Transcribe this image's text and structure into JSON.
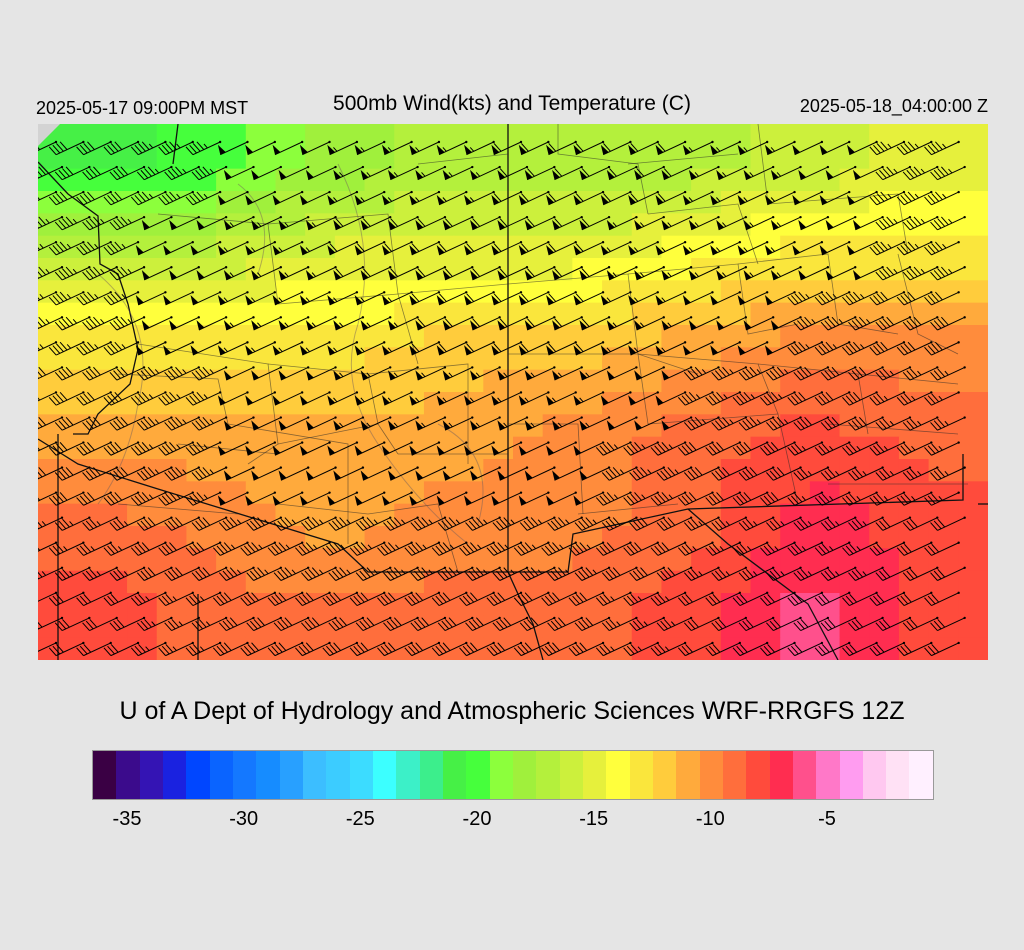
{
  "header": {
    "local_time": "2025-05-17 09:00PM MST",
    "title": "500mb Wind(kts) and Temperature (C)",
    "utc_time": "2025-05-18_04:00:00 Z"
  },
  "credit": "U of A Dept of Hydrology and Atmospheric Sciences WRF-RRGFS 12Z",
  "colorbar": {
    "colors": [
      "#3a0044",
      "#3b0b8c",
      "#3414b4",
      "#1a22e0",
      "#0046ff",
      "#0a64ff",
      "#1478ff",
      "#168cff",
      "#28a0ff",
      "#3cbeff",
      "#3cccff",
      "#3cdcff",
      "#3cffff",
      "#3cf0c8",
      "#3cee8c",
      "#46f046",
      "#46ff3c",
      "#8cff3c",
      "#a0f03c",
      "#b4f03c",
      "#ccf03c",
      "#e6f03c",
      "#ffff3c",
      "#fae63c",
      "#ffcc3c",
      "#ffaa3c",
      "#ff8c3c",
      "#ff6e3c",
      "#ff4b3c",
      "#ff2d50",
      "#ff508c",
      "#ff78c8",
      "#ff9cf0",
      "#ffc8f0",
      "#ffe1f5",
      "#fff0ff"
    ],
    "tick_labels": [
      "-35",
      "-30",
      "-25",
      "-20",
      "-15",
      "-10",
      "-5"
    ],
    "tick_index": [
      1,
      6,
      11,
      16,
      21,
      26,
      31
    ]
  },
  "map": {
    "ocean_color": "#d3d3d3",
    "temperature_field": {
      "description_source": "color shading",
      "rows": 6,
      "cols": 8,
      "values_c": [
        [
          -21,
          -20,
          -18,
          -17,
          -17,
          -17,
          -16,
          -15
        ],
        [
          -16,
          -16,
          -15,
          -15,
          -15,
          -14,
          -13,
          -13
        ],
        [
          -13,
          -13,
          -13,
          -12,
          -12,
          -11,
          -10,
          -10
        ],
        [
          -11,
          -11,
          -11,
          -11,
          -10,
          -9,
          -8,
          -9
        ],
        [
          -9,
          -10,
          -11,
          -10,
          -10,
          -9,
          -7,
          -8
        ],
        [
          -8,
          -9,
          -9,
          -9,
          -9,
          -8,
          -6,
          -8
        ]
      ]
    },
    "wind_barbs": {
      "icon": "wind-barb-icon",
      "direction_from_deg": 245,
      "speed_kts": [
        [
          40,
          45,
          50,
          55,
          55,
          60,
          60,
          55,
          50,
          45
        ],
        [
          45,
          50,
          55,
          60,
          60,
          60,
          55,
          55,
          50,
          45
        ],
        [
          45,
          50,
          55,
          55,
          60,
          60,
          55,
          50,
          45,
          40
        ],
        [
          40,
          45,
          50,
          55,
          55,
          55,
          50,
          45,
          40,
          35
        ],
        [
          40,
          45,
          50,
          50,
          50,
          50,
          45,
          40,
          35,
          35
        ],
        [
          35,
          40,
          45,
          45,
          45,
          45,
          40,
          35,
          35,
          30
        ],
        [
          30,
          35,
          40,
          40,
          40,
          40,
          35,
          30,
          30,
          30
        ]
      ]
    }
  }
}
